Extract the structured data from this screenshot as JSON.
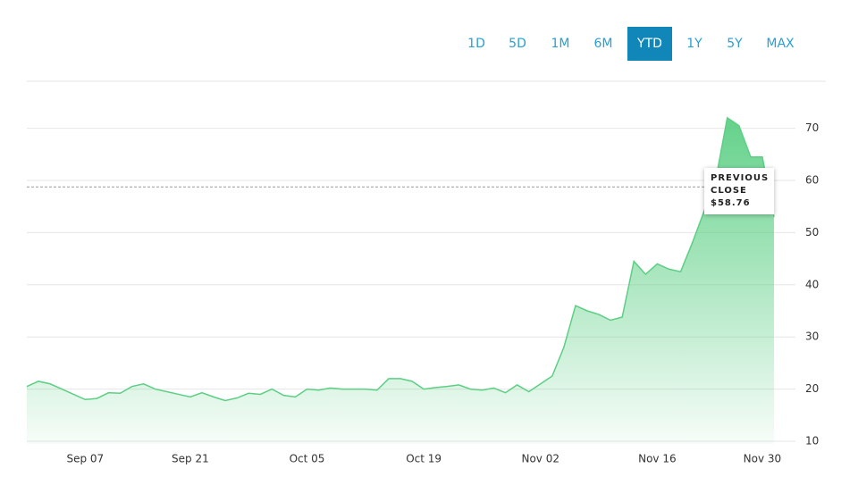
{
  "range_buttons": {
    "items": [
      "1D",
      "5D",
      "1M",
      "6M",
      "YTD",
      "1Y",
      "5Y",
      "MAX"
    ],
    "active": 4
  },
  "chart_data": {
    "type": "area",
    "color": "#5ccf84",
    "categories": [
      null,
      null,
      null,
      null,
      null,
      "Sep 07",
      null,
      null,
      null,
      null,
      null,
      null,
      null,
      null,
      "Sep 21",
      null,
      null,
      null,
      null,
      null,
      null,
      null,
      null,
      null,
      "Oct 05",
      null,
      null,
      null,
      null,
      null,
      null,
      null,
      null,
      null,
      "Oct 19",
      null,
      null,
      null,
      null,
      null,
      null,
      null,
      null,
      null,
      "Nov 02",
      null,
      null,
      null,
      null,
      null,
      null,
      null,
      null,
      null,
      "Nov 16",
      null,
      null,
      null,
      null,
      null,
      null,
      null,
      null,
      "Nov 30",
      null
    ],
    "values": [
      20.5,
      21.5,
      21,
      20,
      19,
      18,
      18.2,
      19.3,
      19.2,
      20.5,
      21,
      20,
      19.5,
      19,
      18.5,
      19.3,
      18.5,
      17.8,
      18.3,
      19.2,
      19,
      20,
      18.8,
      18.5,
      20,
      19.8,
      20.2,
      20,
      20,
      20,
      19.8,
      22,
      22,
      21.5,
      20,
      20.3,
      20.5,
      20.8,
      20,
      19.8,
      20.2,
      19.3,
      20.8,
      19.5,
      21,
      22.5,
      28,
      36,
      35,
      34.3,
      33.2,
      33.8,
      44.5,
      42,
      44,
      43,
      42.5,
      48,
      54,
      60,
      72,
      70.5,
      64.5,
      64.5,
      53
    ],
    "ylim": [
      10,
      79
    ],
    "yticks": [
      10,
      20,
      30,
      40,
      50,
      60,
      70
    ],
    "grid": true,
    "previous_close": {
      "label": "PREVIOUS CLOSE",
      "value": 58.76,
      "value_label": "$58.76"
    }
  }
}
